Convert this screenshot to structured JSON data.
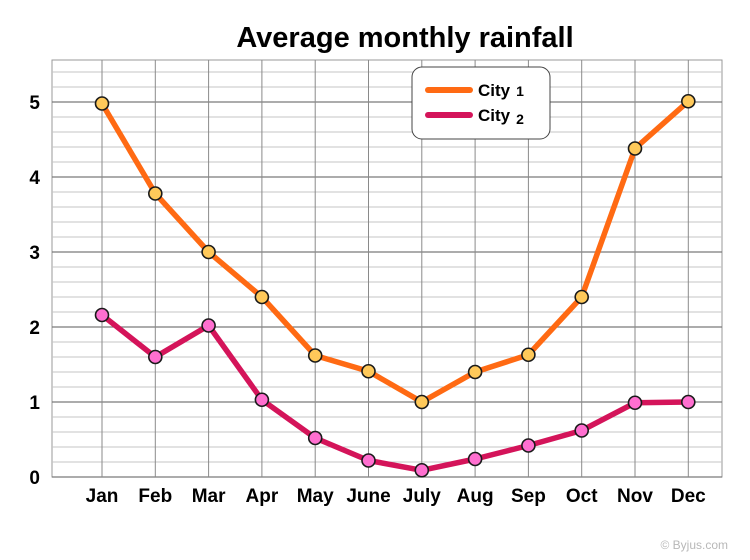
{
  "chart_data": {
    "type": "line",
    "title": "Average monthly rainfall",
    "xlabel": "",
    "ylabel": "",
    "categories": [
      "Jan",
      "Feb",
      "Mar",
      "Apr",
      "May",
      "June",
      "July",
      "Aug",
      "Sep",
      "Oct",
      "Nov",
      "Dec"
    ],
    "ylim": [
      0,
      5.5
    ],
    "yticks": [
      0,
      1,
      2,
      3,
      4,
      5
    ],
    "grid": true,
    "legend_position": "top-right",
    "series": [
      {
        "name": "City",
        "number": "1",
        "color": "#ff6a13",
        "marker_color": "#ffc95a",
        "values": [
          4.98,
          3.78,
          3.0,
          2.4,
          1.62,
          1.41,
          1.0,
          1.4,
          1.63,
          2.4,
          4.38,
          5.01
        ]
      },
      {
        "name": "City",
        "number": "2",
        "color": "#d4145a",
        "marker_color": "#ff6fd0",
        "values": [
          2.16,
          1.6,
          2.02,
          1.03,
          0.52,
          0.22,
          0.09,
          0.24,
          0.42,
          0.62,
          0.99,
          1.0
        ]
      }
    ]
  },
  "watermark": "© Byjus.com"
}
